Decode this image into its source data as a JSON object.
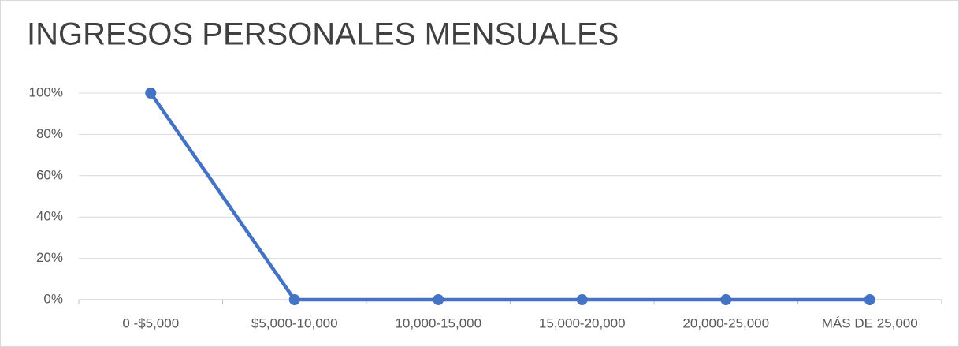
{
  "chart_data": {
    "type": "line",
    "title": "INGRESOS PERSONALES MENSUALES",
    "categories": [
      "0 -$5,000",
      "$5,000-10,000",
      "10,000-15,000",
      "15,000-20,000",
      "20,000-25,000",
      "MÁS DE 25,000"
    ],
    "values": [
      100,
      0,
      0,
      0,
      0,
      0
    ],
    "color": "#4472c4",
    "ylim": [
      0,
      100
    ],
    "yticks": [
      {
        "value": 0,
        "label": "0%"
      },
      {
        "value": 20,
        "label": "20%"
      },
      {
        "value": 40,
        "label": "40%"
      },
      {
        "value": 60,
        "label": "60%"
      },
      {
        "value": 80,
        "label": "80%"
      },
      {
        "value": 100,
        "label": "100%"
      }
    ],
    "grid": true
  }
}
